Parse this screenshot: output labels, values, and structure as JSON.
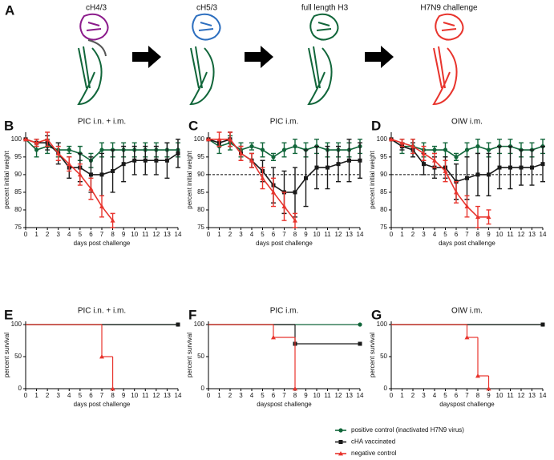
{
  "panel_a": {
    "panel": "A",
    "labels": [
      "cH4/3",
      "cH5/3",
      "full length H3",
      "H7N9 challenge"
    ]
  },
  "chart_data": [
    {
      "type": "line",
      "panel": "B",
      "title": "PIC i.n. + i.m.",
      "xlabel": "days post challenge",
      "ylabel": "percent initial weight",
      "x": [
        0,
        1,
        2,
        3,
        4,
        5,
        6,
        7,
        8,
        9,
        10,
        11,
        12,
        13,
        14
      ],
      "xlim": [
        0,
        14
      ],
      "xticks": [
        0,
        1,
        2,
        3,
        4,
        5,
        6,
        7,
        8,
        9,
        10,
        11,
        12,
        13,
        14
      ],
      "ylim": [
        75,
        102
      ],
      "yticks": [
        75,
        80,
        85,
        90,
        95,
        100
      ],
      "series": [
        {
          "color": "#11663a",
          "marker": "circle",
          "values": [
            100,
            97,
            98,
            97,
            97,
            96,
            94,
            97,
            97,
            97,
            97,
            97,
            97,
            97,
            97
          ],
          "errors": [
            0,
            2,
            2,
            2,
            1,
            2,
            2,
            2,
            2,
            2,
            2,
            2,
            2,
            2,
            2
          ]
        },
        {
          "color": "#1a1a1a",
          "marker": "square",
          "values": [
            100,
            99,
            99,
            96,
            92,
            92,
            90,
            90,
            91,
            93,
            94,
            94,
            94,
            94,
            96
          ],
          "errors": [
            0,
            1,
            2,
            3,
            3,
            4,
            5,
            6,
            6,
            5,
            4,
            4,
            4,
            5,
            4
          ]
        },
        {
          "color": "#e8342d",
          "marker": "triangle",
          "values": [
            100,
            99,
            100,
            96,
            93,
            90,
            86,
            81,
            77,
            null,
            null,
            null,
            null,
            null,
            null
          ],
          "errors": [
            0,
            1,
            2,
            2,
            2,
            3,
            3,
            3,
            2,
            null,
            null,
            null,
            null,
            null,
            null
          ]
        }
      ]
    },
    {
      "type": "line",
      "panel": "C",
      "title": "PIC i.m.",
      "xlabel": "days post challenge",
      "ylabel": "percent initial weight",
      "x": [
        0,
        1,
        2,
        3,
        4,
        5,
        6,
        7,
        8,
        9,
        10,
        11,
        12,
        13,
        14
      ],
      "xlim": [
        0,
        14
      ],
      "xticks": [
        0,
        1,
        2,
        3,
        4,
        5,
        6,
        7,
        8,
        9,
        10,
        11,
        12,
        13,
        14
      ],
      "ylim": [
        75,
        102
      ],
      "yticks": [
        75,
        80,
        85,
        90,
        95,
        100
      ],
      "hline": 90,
      "series": [
        {
          "color": "#11663a",
          "marker": "circle",
          "values": [
            100,
            98,
            99,
            97,
            98,
            97,
            95,
            97,
            98,
            97,
            98,
            97,
            97,
            97,
            98
          ],
          "errors": [
            0,
            2,
            2,
            2,
            1,
            2,
            1,
            2,
            2,
            2,
            2,
            2,
            2,
            2,
            2
          ]
        },
        {
          "color": "#1a1a1a",
          "marker": "square",
          "values": [
            100,
            99,
            100,
            96,
            94,
            91,
            87,
            85,
            85,
            89,
            92,
            92,
            93,
            94,
            94
          ],
          "errors": [
            0,
            1,
            2,
            2,
            2,
            3,
            5,
            6,
            7,
            8,
            6,
            6,
            5,
            6,
            5
          ]
        },
        {
          "color": "#e8342d",
          "marker": "triangle",
          "values": [
            100,
            100,
            100,
            96,
            94,
            89,
            85,
            81,
            77,
            null,
            null,
            null,
            null,
            null,
            null
          ],
          "errors": [
            0,
            2,
            2,
            2,
            2,
            3,
            4,
            4,
            2,
            null,
            null,
            null,
            null,
            null,
            null
          ]
        }
      ]
    },
    {
      "type": "line",
      "panel": "D",
      "title": "OIW i.m.",
      "xlabel": "days post challenge",
      "ylabel": "percent initial weight",
      "x": [
        0,
        1,
        2,
        3,
        4,
        5,
        6,
        7,
        8,
        9,
        10,
        11,
        12,
        13,
        14
      ],
      "xlim": [
        0,
        14
      ],
      "xticks": [
        0,
        1,
        2,
        3,
        4,
        5,
        6,
        7,
        8,
        9,
        10,
        11,
        12,
        13,
        14
      ],
      "ylim": [
        75,
        102
      ],
      "yticks": [
        75,
        80,
        85,
        90,
        95,
        100
      ],
      "hline": 90,
      "series": [
        {
          "color": "#11663a",
          "marker": "circle",
          "values": [
            100,
            98,
            98,
            97,
            97,
            97,
            95,
            97,
            98,
            97,
            98,
            98,
            97,
            97,
            98
          ],
          "errors": [
            0,
            2,
            2,
            2,
            1,
            2,
            1,
            2,
            2,
            2,
            2,
            2,
            2,
            2,
            2
          ]
        },
        {
          "color": "#1a1a1a",
          "marker": "square",
          "values": [
            100,
            98,
            97,
            93,
            92,
            92,
            88,
            89,
            90,
            90,
            92,
            92,
            92,
            92,
            93
          ],
          "errors": [
            0,
            1,
            2,
            3,
            3,
            3,
            5,
            6,
            6,
            6,
            6,
            6,
            5,
            5,
            5
          ]
        },
        {
          "color": "#e8342d",
          "marker": "triangle",
          "values": [
            100,
            99,
            98,
            96,
            94,
            91,
            85,
            81,
            78,
            78,
            null,
            null,
            null,
            null,
            null
          ],
          "errors": [
            0,
            1,
            2,
            2,
            2,
            3,
            3,
            3,
            3,
            2,
            null,
            null,
            null,
            null,
            null
          ]
        }
      ]
    },
    {
      "type": "step",
      "panel": "E",
      "title": "PIC i.n. + i.m.",
      "xlabel": "days post challenge",
      "ylabel": "percent survival",
      "xlim": [
        0,
        14
      ],
      "xticks": [
        0,
        1,
        2,
        3,
        4,
        5,
        6,
        7,
        8,
        9,
        10,
        11,
        12,
        13,
        14
      ],
      "ylim": [
        0,
        105
      ],
      "yticks": [
        0,
        50,
        100
      ],
      "series": [
        {
          "color": "#11663a",
          "marker": "circle",
          "x": [
            0,
            14
          ],
          "values": [
            100,
            100
          ]
        },
        {
          "color": "#1a1a1a",
          "marker": "square",
          "x": [
            0,
            14
          ],
          "values": [
            100,
            100
          ]
        },
        {
          "color": "#e8342d",
          "marker": "triangle",
          "x": [
            0,
            7,
            8
          ],
          "values": [
            100,
            50,
            0
          ]
        }
      ]
    },
    {
      "type": "step",
      "panel": "F",
      "title": "PIC i.m.",
      "xlabel": "dayspost challenge",
      "ylabel": "percent survival",
      "xlim": [
        0,
        14
      ],
      "xticks": [
        0,
        1,
        2,
        3,
        4,
        5,
        6,
        7,
        8,
        9,
        10,
        11,
        12,
        13,
        14
      ],
      "ylim": [
        0,
        105
      ],
      "yticks": [
        0,
        50,
        100
      ],
      "series": [
        {
          "color": "#11663a",
          "marker": "circle",
          "x": [
            0,
            14
          ],
          "values": [
            100,
            100
          ]
        },
        {
          "color": "#1a1a1a",
          "marker": "square",
          "x": [
            0,
            8,
            14
          ],
          "values": [
            100,
            70,
            70
          ]
        },
        {
          "color": "#e8342d",
          "marker": "triangle",
          "x": [
            0,
            6,
            8
          ],
          "values": [
            100,
            80,
            0
          ]
        }
      ]
    },
    {
      "type": "step",
      "panel": "G",
      "title": "OIW i.m.",
      "xlabel": "dayspost challenge",
      "ylabel": "percent survival",
      "xlim": [
        0,
        14
      ],
      "xticks": [
        0,
        1,
        2,
        3,
        4,
        5,
        6,
        7,
        8,
        9,
        10,
        11,
        12,
        13,
        14
      ],
      "ylim": [
        0,
        105
      ],
      "yticks": [
        0,
        50,
        100
      ],
      "series": [
        {
          "color": "#11663a",
          "marker": "circle",
          "x": [
            0,
            14
          ],
          "values": [
            100,
            100
          ]
        },
        {
          "color": "#1a1a1a",
          "marker": "square",
          "x": [
            0,
            14
          ],
          "values": [
            100,
            100
          ]
        },
        {
          "color": "#e8342d",
          "marker": "triangle",
          "x": [
            0,
            7,
            8,
            9
          ],
          "values": [
            100,
            80,
            20,
            0
          ]
        }
      ]
    }
  ],
  "legend": [
    {
      "name": "positive control (inactivated H7N9 virus)",
      "color": "#11663a",
      "marker": "circle"
    },
    {
      "name": "cHA vaccinated",
      "color": "#1a1a1a",
      "marker": "square"
    },
    {
      "name": "negative control",
      "color": "#e8342d",
      "marker": "triangle"
    }
  ]
}
